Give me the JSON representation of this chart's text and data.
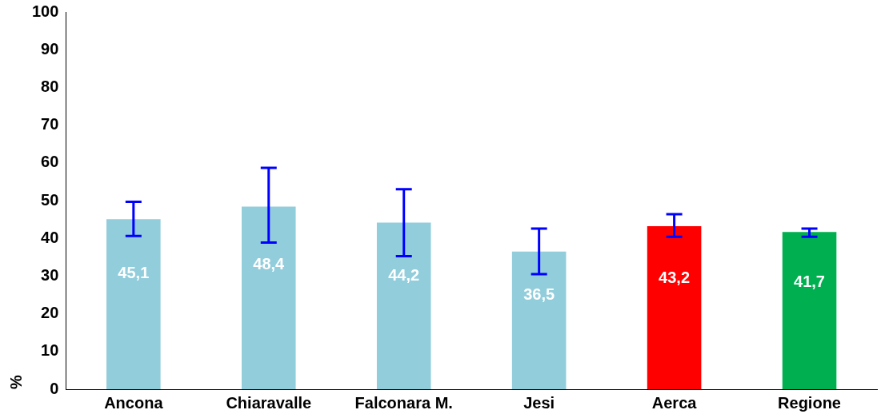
{
  "chart_data": {
    "type": "bar",
    "ylabel": "%",
    "categories": [
      "Ancona",
      "Chiaravalle",
      "Falconara M.",
      "Jesi",
      "Aerca",
      "Regione"
    ],
    "values": [
      45.1,
      48.4,
      44.2,
      36.5,
      43.2,
      41.7
    ],
    "colors": [
      "#92cddc",
      "#92cddc",
      "#92cddc",
      "#92cddc",
      "#ff0000",
      "#00b050"
    ],
    "errors": [
      [
        40.6,
        49.7
      ],
      [
        38.9,
        58.7
      ],
      [
        35.3,
        53.0
      ],
      [
        30.5,
        42.6
      ],
      [
        40.4,
        46.4
      ],
      [
        40.4,
        42.6
      ]
    ],
    "ylim": [
      0,
      100
    ],
    "yticks": [
      0,
      10,
      20,
      30,
      40,
      50,
      60,
      70,
      80,
      90,
      100
    ],
    "value_labels": [
      "45,1",
      "48,4",
      "44,2",
      "36,5",
      "43,2",
      "41,7"
    ],
    "grid": false,
    "legend": false
  }
}
